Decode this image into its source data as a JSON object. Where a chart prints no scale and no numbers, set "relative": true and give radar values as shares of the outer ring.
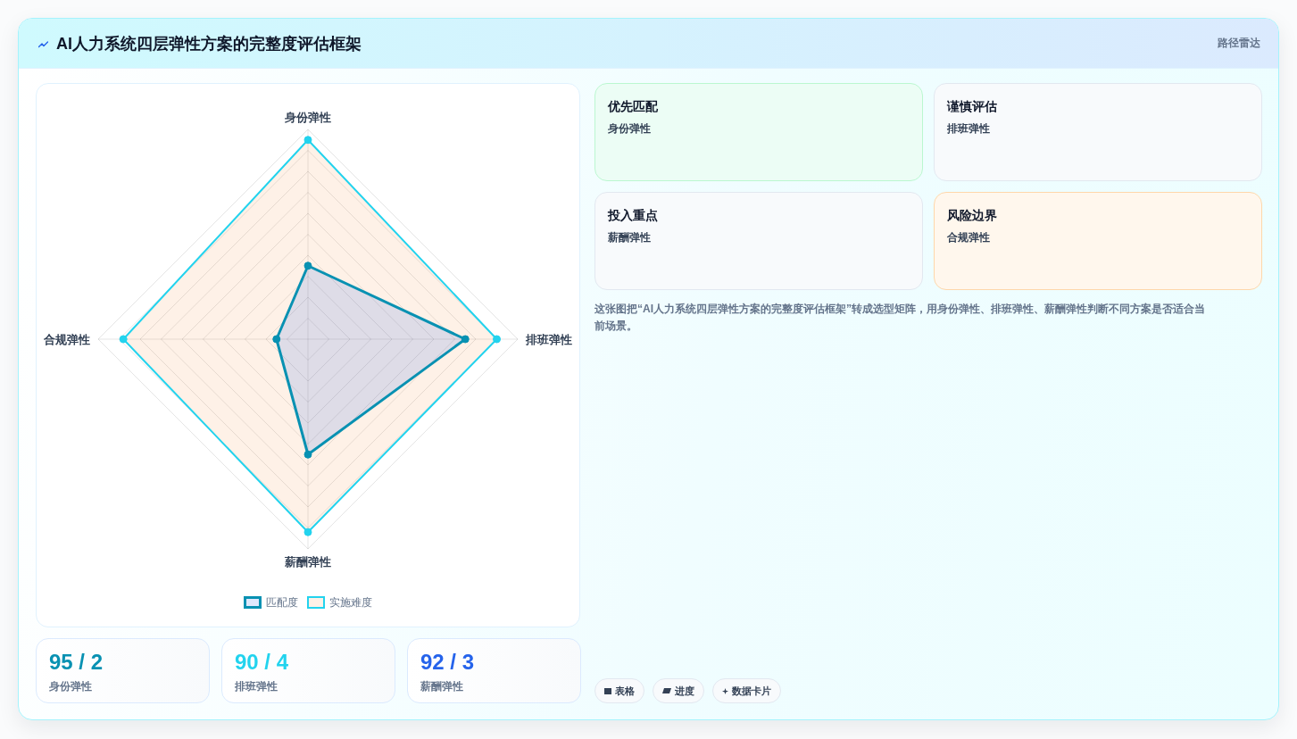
{
  "chart_data": {
    "type": "radar",
    "title": "AI人力系统四层弹性方案的完整度评估框架",
    "subtitle": "路径雷达",
    "categories": [
      "身份弹性",
      "排班弹性",
      "薪酬弹性",
      "合规弹性"
    ],
    "series": [
      {
        "name": "匹配度",
        "color": "#0891b2",
        "values": [
          0.35,
          0.75,
          0.55,
          0.15
        ]
      },
      {
        "name": "实施难度",
        "color": "#22d3ee",
        "values": [
          0.95,
          0.9,
          0.92,
          0.88
        ]
      }
    ],
    "relative": true,
    "grid": true,
    "legend": "bottom",
    "marker": "circle",
    "annotations": [
      "95 / 2",
      "身份弹性",
      "90 / 4",
      "排班弹性",
      "92 / 3",
      "薪酬弹性",
      "优先匹配",
      "身份弹性",
      "谨慎评估",
      "排班弹性",
      "投入重点",
      "薪酬弹性",
      "风险边界",
      "合规弹性",
      "这张图把“AI人力系统四层弹性方案的完整度评估框架”转成选型矩阵，用身份弹性、排班弹性、薪酬弹性判断不同方案是否适合当前场景。",
      "表格",
      "进度",
      "数据卡片"
    ]
  }
}
